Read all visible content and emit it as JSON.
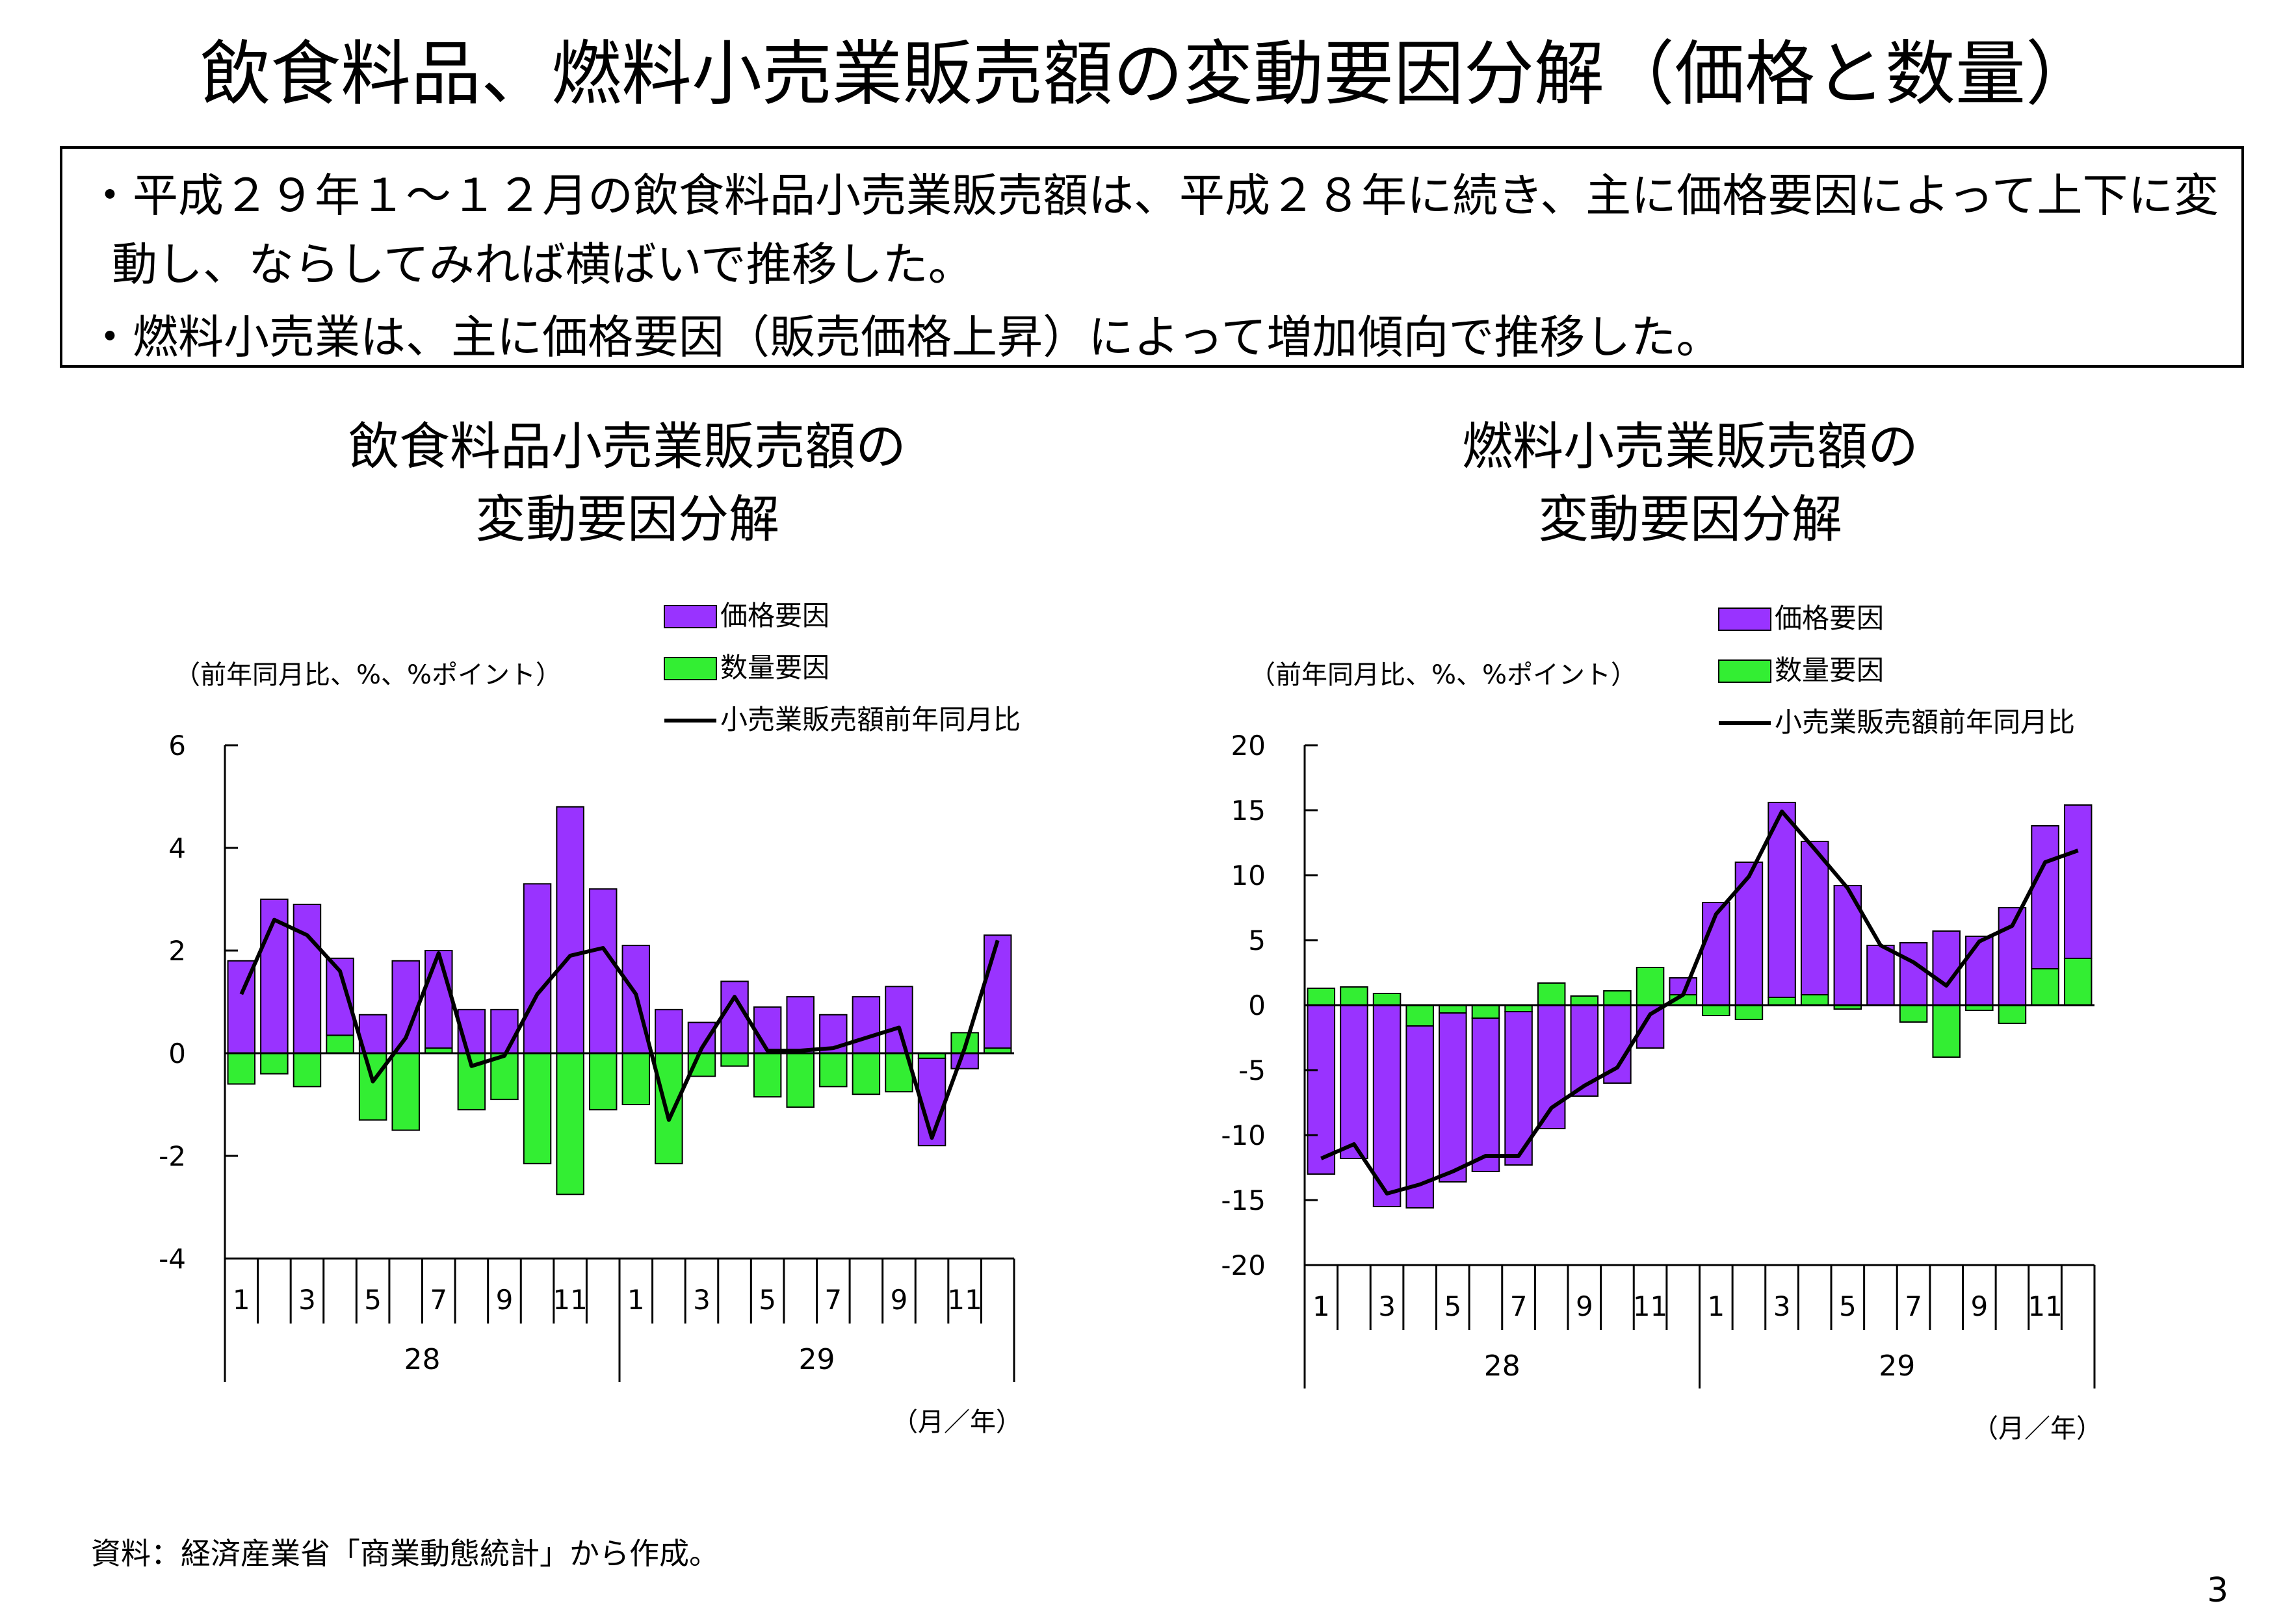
{
  "page_title": "飲食料品、燃料小売業販売額の変動要因分解（価格と数量）",
  "summary": {
    "bullet1_line1": "・平成２９年１～１２月の飲食料品小売業販売額は、平成２８年に続き、主に価格要因によって上下に変",
    "bullet1_line2": "動し、ならしてみれば横ばいで推移した。",
    "bullet2": "・燃料小売業は、主に価格要因（販売価格上昇）によって増加傾向で推移した。"
  },
  "colors": {
    "price": "#9933ff",
    "quantity": "#33ee33",
    "line": "#000000"
  },
  "source_note": "資料：経済産業省「商業動態統計」から作成。",
  "page_number": "3",
  "chart_data": [
    {
      "type": "bar",
      "title_line1": "飲食料品小売業販売額の",
      "title_line2": "変動要因分解",
      "unit_label": "（前年同月比、%、%ポイント）",
      "x_unit_label": "（月／年）",
      "ylim": [
        -4,
        6
      ],
      "yticks": [
        6,
        4,
        2,
        0,
        -2,
        -4
      ],
      "month_labels": [
        "1",
        "3",
        "5",
        "7",
        "9",
        "11",
        "1",
        "3",
        "5",
        "7",
        "9",
        "11"
      ],
      "year_labels": [
        "28",
        "29"
      ],
      "legend": {
        "position": "top-right",
        "entries": [
          "価格要因",
          "数量要因",
          "小売業販売額前年同月比"
        ]
      },
      "series": [
        {
          "name": "価格要因",
          "kind": "bar",
          "values": [
            1.8,
            3.0,
            2.9,
            1.5,
            0.75,
            1.8,
            1.9,
            0.85,
            0.85,
            3.3,
            4.8,
            3.2,
            2.1,
            0.85,
            0.6,
            1.4,
            0.9,
            1.1,
            0.75,
            1.1,
            1.3,
            -1.7,
            -0.3,
            2.2
          ]
        },
        {
          "name": "数量要因",
          "kind": "bar",
          "values": [
            -0.6,
            -0.4,
            -0.65,
            0.35,
            -1.3,
            -1.5,
            0.1,
            -1.1,
            -0.9,
            -2.15,
            -2.75,
            -1.1,
            -1.0,
            -2.15,
            -0.45,
            -0.25,
            -0.85,
            -1.05,
            -0.65,
            -0.8,
            -0.75,
            -0.1,
            0.4,
            0.1
          ]
        },
        {
          "name": "小売業販売額前年同月比",
          "kind": "line",
          "values": [
            1.15,
            2.6,
            2.3,
            1.6,
            -0.55,
            0.3,
            1.95,
            -0.25,
            -0.05,
            1.15,
            1.9,
            2.05,
            1.15,
            -1.3,
            0.1,
            1.1,
            0.05,
            0.05,
            0.1,
            0.3,
            0.5,
            -1.65,
            0.1,
            2.2
          ]
        }
      ]
    },
    {
      "type": "bar",
      "title_line1": "燃料小売業販売額の",
      "title_line2": "変動要因分解",
      "unit_label": "（前年同月比、%、%ポイント）",
      "x_unit_label": "（月／年）",
      "ylim": [
        -20,
        20
      ],
      "yticks": [
        20,
        15,
        10,
        5,
        0,
        -5,
        -10,
        -15,
        -20
      ],
      "month_labels": [
        "1",
        "3",
        "5",
        "7",
        "9",
        "11",
        "1",
        "3",
        "5",
        "7",
        "9",
        "11"
      ],
      "year_labels": [
        "28",
        "29"
      ],
      "legend": {
        "position": "top-right",
        "entries": [
          "価格要因",
          "数量要因",
          "小売業販売額前年同月比"
        ]
      },
      "series": [
        {
          "name": "価格要因",
          "kind": "bar",
          "values": [
            -13.0,
            -11.8,
            -15.5,
            -14.0,
            -13.0,
            -11.8,
            -11.8,
            -9.5,
            -7.0,
            -6.0,
            -3.3,
            1.3,
            7.9,
            11.0,
            15.0,
            11.8,
            9.2,
            4.6,
            4.8,
            5.7,
            5.3,
            7.5,
            11.0,
            11.8
          ]
        },
        {
          "name": "数量要因",
          "kind": "bar",
          "values": [
            1.3,
            1.4,
            0.9,
            -1.6,
            -0.6,
            -1.0,
            -0.5,
            1.7,
            0.7,
            1.1,
            2.9,
            0.8,
            -0.8,
            -1.1,
            0.6,
            0.8,
            -0.3,
            0.0,
            -1.3,
            -4.0,
            -0.4,
            -1.4,
            2.8,
            3.6
          ]
        },
        {
          "name": "小売業販売額前年同月比",
          "kind": "line",
          "values": [
            -11.8,
            -10.7,
            -14.5,
            -13.8,
            -12.8,
            -11.6,
            -11.6,
            -7.9,
            -6.2,
            -4.8,
            -0.7,
            0.8,
            7.0,
            9.9,
            14.9,
            12.0,
            9.0,
            4.6,
            3.3,
            1.5,
            4.9,
            6.1,
            11.0,
            11.9
          ]
        }
      ]
    }
  ]
}
